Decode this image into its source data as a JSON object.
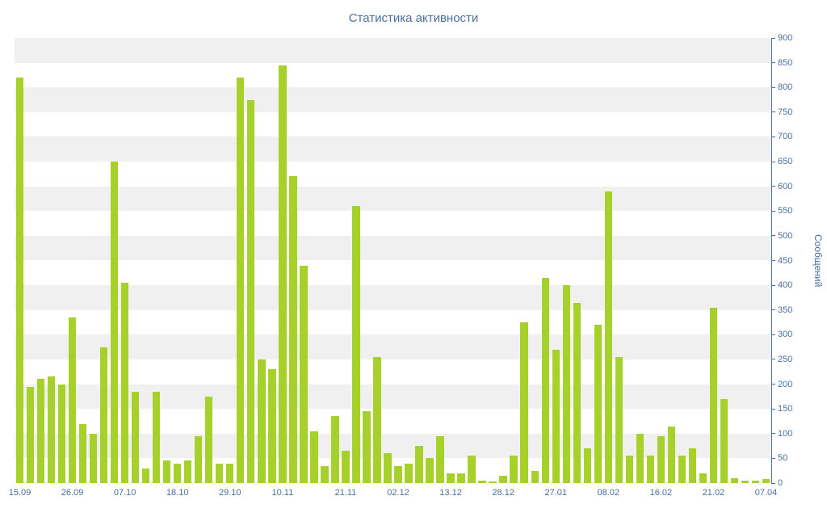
{
  "title": "Статистика активности",
  "chart_data": {
    "type": "bar",
    "title": "Статистика активности",
    "xlabel": "",
    "ylabel": "Сообщений",
    "ylim": [
      0,
      900
    ],
    "y_tick_step": 50,
    "grid": "horizontal-bands",
    "legend": "none",
    "bar_color": "#a6d12b",
    "text_color": "#4a6f9e",
    "axis_color": "#4a6f9e",
    "band_color": "#f0f0f0",
    "background_color": "#ffffff",
    "values": [
      820,
      195,
      210,
      215,
      200,
      335,
      120,
      100,
      275,
      650,
      405,
      185,
      30,
      185,
      45,
      40,
      45,
      95,
      175,
      40,
      40,
      820,
      775,
      250,
      230,
      845,
      620,
      440,
      105,
      35,
      135,
      65,
      560,
      145,
      255,
      60,
      35,
      40,
      75,
      50,
      95,
      20,
      20,
      55,
      5,
      3,
      15,
      55,
      325,
      25,
      415,
      270,
      400,
      365,
      70,
      320,
      590,
      255,
      55,
      100,
      55,
      95,
      115,
      55,
      70,
      20,
      355,
      170,
      10,
      5,
      5,
      8
    ],
    "x_ticks": [
      {
        "index": 0,
        "label": "15.09"
      },
      {
        "index": 5,
        "label": "26.09"
      },
      {
        "index": 10,
        "label": "07.10"
      },
      {
        "index": 15,
        "label": "18.10"
      },
      {
        "index": 20,
        "label": "29.10"
      },
      {
        "index": 25,
        "label": "10.11"
      },
      {
        "index": 31,
        "label": "21.11"
      },
      {
        "index": 36,
        "label": "02.12"
      },
      {
        "index": 41,
        "label": "13.12"
      },
      {
        "index": 46,
        "label": "28.12"
      },
      {
        "index": 51,
        "label": "27.01"
      },
      {
        "index": 56,
        "label": "08.02"
      },
      {
        "index": 61,
        "label": "16.02"
      },
      {
        "index": 66,
        "label": "21.02"
      },
      {
        "index": 71,
        "label": "07.04"
      }
    ]
  }
}
